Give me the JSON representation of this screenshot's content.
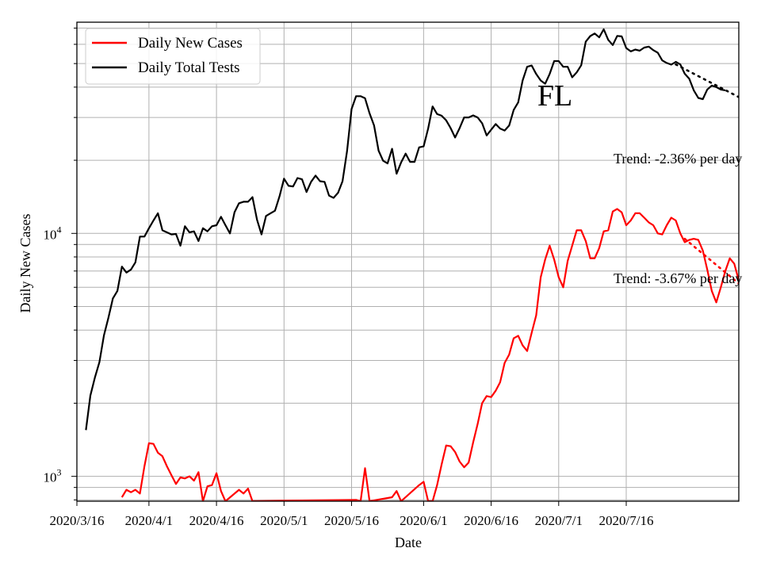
{
  "chart_data": {
    "type": "line",
    "title": "",
    "state_label": "FL",
    "xlabel": "Date",
    "ylabel": "Daily New Cases",
    "yscale": "log",
    "ylim": [
      790,
      74000
    ],
    "xlim": [
      "2020-03-16",
      "2020-08-10"
    ],
    "grid": "on (major and minor)",
    "legend_position": "top-left",
    "x_ticks": [
      "2020/3/16",
      "2020/4/1",
      "2020/4/16",
      "2020/5/1",
      "2020/5/16",
      "2020/6/1",
      "2020/6/16",
      "2020/7/1",
      "2020/7/16"
    ],
    "y_tick_labels": [
      {
        "base": "10",
        "exp": "3",
        "value": 1000
      },
      {
        "base": "10",
        "exp": "4",
        "value": 10000
      }
    ],
    "annotations": [
      {
        "text": "Trend: -2.36% per day",
        "applies_to": "Daily Total Tests"
      },
      {
        "text": "Trend: -3.67% per day",
        "applies_to": "Daily New Cases"
      }
    ],
    "series": [
      {
        "name": "Daily New Cases",
        "color": "#ff0000",
        "points": [
          [
            "2020-03-26",
            820
          ],
          [
            "2020-03-27",
            880
          ],
          [
            "2020-03-28",
            860
          ],
          [
            "2020-03-29",
            880
          ],
          [
            "2020-03-30",
            850
          ],
          [
            "2020-03-31",
            1100
          ],
          [
            "2020-04-01",
            1370
          ],
          [
            "2020-04-02",
            1360
          ],
          [
            "2020-04-03",
            1250
          ],
          [
            "2020-04-04",
            1210
          ],
          [
            "2020-04-05",
            1100
          ],
          [
            "2020-04-06",
            1010
          ],
          [
            "2020-04-07",
            930
          ],
          [
            "2020-04-08",
            990
          ],
          [
            "2020-04-09",
            980
          ],
          [
            "2020-04-10",
            1000
          ],
          [
            "2020-04-11",
            960
          ],
          [
            "2020-04-12",
            1040
          ],
          [
            "2020-04-13",
            790
          ],
          [
            "2020-04-14",
            910
          ],
          [
            "2020-04-15",
            920
          ],
          [
            "2020-04-16",
            1030
          ],
          [
            "2020-04-17",
            870
          ],
          [
            "2020-04-18",
            790
          ],
          [
            "2020-04-21",
            880
          ],
          [
            "2020-04-22",
            850
          ],
          [
            "2020-04-23",
            890
          ],
          [
            "2020-04-24",
            790
          ],
          [
            "2020-05-03",
            795
          ],
          [
            "2020-05-17",
            800
          ],
          [
            "2020-05-18",
            790
          ],
          [
            "2020-05-19",
            1080
          ],
          [
            "2020-05-20",
            790
          ],
          [
            "2020-05-25",
            820
          ],
          [
            "2020-05-26",
            870
          ],
          [
            "2020-05-27",
            790
          ],
          [
            "2020-05-31",
            920
          ],
          [
            "2020-06-01",
            950
          ],
          [
            "2020-06-02",
            790
          ],
          [
            "2020-06-03",
            790
          ],
          [
            "2020-06-04",
            920
          ],
          [
            "2020-06-05",
            1120
          ],
          [
            "2020-06-06",
            1340
          ],
          [
            "2020-06-07",
            1330
          ],
          [
            "2020-06-08",
            1260
          ],
          [
            "2020-06-09",
            1150
          ],
          [
            "2020-06-10",
            1090
          ],
          [
            "2020-06-11",
            1140
          ],
          [
            "2020-06-12",
            1380
          ],
          [
            "2020-06-13",
            1640
          ],
          [
            "2020-06-14",
            2000
          ],
          [
            "2020-06-15",
            2140
          ],
          [
            "2020-06-16",
            2120
          ],
          [
            "2020-06-17",
            2250
          ],
          [
            "2020-06-18",
            2440
          ],
          [
            "2020-06-19",
            2930
          ],
          [
            "2020-06-20",
            3170
          ],
          [
            "2020-06-21",
            3700
          ],
          [
            "2020-06-22",
            3790
          ],
          [
            "2020-06-23",
            3460
          ],
          [
            "2020-06-24",
            3280
          ],
          [
            "2020-06-25",
            3900
          ],
          [
            "2020-06-26",
            4600
          ],
          [
            "2020-06-27",
            6600
          ],
          [
            "2020-06-28",
            7800
          ],
          [
            "2020-06-29",
            8900
          ],
          [
            "2020-06-30",
            7800
          ],
          [
            "2020-07-01",
            6600
          ],
          [
            "2020-07-02",
            6000
          ],
          [
            "2020-07-03",
            7700
          ],
          [
            "2020-07-04",
            8900
          ],
          [
            "2020-07-05",
            10300
          ],
          [
            "2020-07-06",
            10300
          ],
          [
            "2020-07-07",
            9300
          ],
          [
            "2020-07-08",
            7900
          ],
          [
            "2020-07-09",
            7900
          ],
          [
            "2020-07-10",
            8700
          ],
          [
            "2020-07-11",
            10200
          ],
          [
            "2020-07-12",
            10300
          ],
          [
            "2020-07-13",
            12300
          ],
          [
            "2020-07-14",
            12600
          ],
          [
            "2020-07-15",
            12200
          ],
          [
            "2020-07-16",
            10800
          ],
          [
            "2020-07-17",
            11300
          ],
          [
            "2020-07-18",
            12100
          ],
          [
            "2020-07-19",
            12100
          ],
          [
            "2020-07-20",
            11600
          ],
          [
            "2020-07-21",
            11100
          ],
          [
            "2020-07-22",
            10800
          ],
          [
            "2020-07-23",
            10000
          ],
          [
            "2020-07-24",
            9900
          ],
          [
            "2020-07-25",
            10800
          ],
          [
            "2020-07-26",
            11600
          ],
          [
            "2020-07-27",
            11300
          ],
          [
            "2020-07-28",
            10000
          ],
          [
            "2020-07-29",
            9200
          ],
          [
            "2020-07-30",
            9400
          ],
          [
            "2020-07-31",
            9500
          ],
          [
            "2020-08-01",
            9400
          ],
          [
            "2020-08-02",
            8500
          ],
          [
            "2020-08-03",
            7100
          ],
          [
            "2020-08-04",
            5800
          ],
          [
            "2020-08-05",
            5200
          ],
          [
            "2020-08-06",
            6000
          ],
          [
            "2020-08-07",
            7000
          ],
          [
            "2020-08-08",
            7900
          ],
          [
            "2020-08-09",
            7500
          ],
          [
            "2020-08-10",
            6400
          ],
          [
            "2020-08-11",
            5200
          ]
        ],
        "trend": {
          "label": "Trend: -3.67% per day",
          "points": [
            [
              "2020-07-29",
              9500
            ],
            [
              "2020-08-11",
              6000
            ]
          ]
        }
      },
      {
        "name": "Daily Total Tests",
        "color": "#000000",
        "points": [
          [
            "2020-03-18",
            1550
          ],
          [
            "2020-03-19",
            2150
          ],
          [
            "2020-03-20",
            2550
          ],
          [
            "2020-03-21",
            2950
          ],
          [
            "2020-03-22",
            3800
          ],
          [
            "2020-03-23",
            4500
          ],
          [
            "2020-03-24",
            5400
          ],
          [
            "2020-03-25",
            5800
          ],
          [
            "2020-03-26",
            7300
          ],
          [
            "2020-03-27",
            6900
          ],
          [
            "2020-03-28",
            7100
          ],
          [
            "2020-03-29",
            7600
          ],
          [
            "2020-03-30",
            9700
          ],
          [
            "2020-03-31",
            9700
          ],
          [
            "2020-04-01",
            10500
          ],
          [
            "2020-04-02",
            11300
          ],
          [
            "2020-04-03",
            12100
          ],
          [
            "2020-04-04",
            10300
          ],
          [
            "2020-04-05",
            10100
          ],
          [
            "2020-04-06",
            9900
          ],
          [
            "2020-04-07",
            9950
          ],
          [
            "2020-04-08",
            8900
          ],
          [
            "2020-04-09",
            10700
          ],
          [
            "2020-04-10",
            10100
          ],
          [
            "2020-04-11",
            10200
          ],
          [
            "2020-04-12",
            9300
          ],
          [
            "2020-04-13",
            10500
          ],
          [
            "2020-04-14",
            10200
          ],
          [
            "2020-04-15",
            10700
          ],
          [
            "2020-04-16",
            10800
          ],
          [
            "2020-04-17",
            11700
          ],
          [
            "2020-04-18",
            10800
          ],
          [
            "2020-04-19",
            10000
          ],
          [
            "2020-04-20",
            12200
          ],
          [
            "2020-04-21",
            13300
          ],
          [
            "2020-04-22",
            13500
          ],
          [
            "2020-04-23",
            13500
          ],
          [
            "2020-04-24",
            14100
          ],
          [
            "2020-04-25",
            11400
          ],
          [
            "2020-04-26",
            9900
          ],
          [
            "2020-04-27",
            11800
          ],
          [
            "2020-04-28",
            12100
          ],
          [
            "2020-04-29",
            12400
          ],
          [
            "2020-04-30",
            14200
          ],
          [
            "2020-05-01",
            16800
          ],
          [
            "2020-05-02",
            15700
          ],
          [
            "2020-05-03",
            15600
          ],
          [
            "2020-05-04",
            16900
          ],
          [
            "2020-05-05",
            16700
          ],
          [
            "2020-05-06",
            14800
          ],
          [
            "2020-05-07",
            16300
          ],
          [
            "2020-05-08",
            17300
          ],
          [
            "2020-05-09",
            16400
          ],
          [
            "2020-05-10",
            16300
          ],
          [
            "2020-05-11",
            14300
          ],
          [
            "2020-05-12",
            14000
          ],
          [
            "2020-05-13",
            14700
          ],
          [
            "2020-05-14",
            16400
          ],
          [
            "2020-05-15",
            21800
          ],
          [
            "2020-05-16",
            32500
          ],
          [
            "2020-05-17",
            36700
          ],
          [
            "2020-05-18",
            36700
          ],
          [
            "2020-05-19",
            36000
          ],
          [
            "2020-05-20",
            31200
          ],
          [
            "2020-05-21",
            27800
          ],
          [
            "2020-05-22",
            21900
          ],
          [
            "2020-05-23",
            19900
          ],
          [
            "2020-05-24",
            19400
          ],
          [
            "2020-05-25",
            22300
          ],
          [
            "2020-05-26",
            17600
          ],
          [
            "2020-05-27",
            19600
          ],
          [
            "2020-05-28",
            21300
          ],
          [
            "2020-05-29",
            19700
          ],
          [
            "2020-05-30",
            19700
          ],
          [
            "2020-05-31",
            22600
          ],
          [
            "2020-06-01",
            22800
          ],
          [
            "2020-06-02",
            27000
          ],
          [
            "2020-06-03",
            33300
          ],
          [
            "2020-06-04",
            31000
          ],
          [
            "2020-06-05",
            30500
          ],
          [
            "2020-06-06",
            29200
          ],
          [
            "2020-06-07",
            27100
          ],
          [
            "2020-06-08",
            24800
          ],
          [
            "2020-06-09",
            27100
          ],
          [
            "2020-06-10",
            30000
          ],
          [
            "2020-06-11",
            30000
          ],
          [
            "2020-06-12",
            30600
          ],
          [
            "2020-06-13",
            30000
          ],
          [
            "2020-06-14",
            28400
          ],
          [
            "2020-06-15",
            25300
          ],
          [
            "2020-06-16",
            26700
          ],
          [
            "2020-06-17",
            28200
          ],
          [
            "2020-06-18",
            27000
          ],
          [
            "2020-06-19",
            26500
          ],
          [
            "2020-06-20",
            27800
          ],
          [
            "2020-06-21",
            32200
          ],
          [
            "2020-06-22",
            34600
          ],
          [
            "2020-06-23",
            42600
          ],
          [
            "2020-06-24",
            48500
          ],
          [
            "2020-06-25",
            49100
          ],
          [
            "2020-06-26",
            45300
          ],
          [
            "2020-06-27",
            42600
          ],
          [
            "2020-06-28",
            41300
          ],
          [
            "2020-06-29",
            45300
          ],
          [
            "2020-06-30",
            51200
          ],
          [
            "2020-07-01",
            51200
          ],
          [
            "2020-07-02",
            48500
          ],
          [
            "2020-07-03",
            48500
          ],
          [
            "2020-07-04",
            43900
          ],
          [
            "2020-07-05",
            46000
          ],
          [
            "2020-07-06",
            49200
          ],
          [
            "2020-07-07",
            61500
          ],
          [
            "2020-07-08",
            64900
          ],
          [
            "2020-07-09",
            66500
          ],
          [
            "2020-07-10",
            64100
          ],
          [
            "2020-07-11",
            69200
          ],
          [
            "2020-07-12",
            62600
          ],
          [
            "2020-07-13",
            59600
          ],
          [
            "2020-07-14",
            65000
          ],
          [
            "2020-07-15",
            64700
          ],
          [
            "2020-07-16",
            57900
          ],
          [
            "2020-07-17",
            56100
          ],
          [
            "2020-07-18",
            57100
          ],
          [
            "2020-07-19",
            56500
          ],
          [
            "2020-07-20",
            58200
          ],
          [
            "2020-07-21",
            58700
          ],
          [
            "2020-07-22",
            56800
          ],
          [
            "2020-07-23",
            55400
          ],
          [
            "2020-07-24",
            51500
          ],
          [
            "2020-07-25",
            50300
          ],
          [
            "2020-07-26",
            49500
          ],
          [
            "2020-07-27",
            50800
          ],
          [
            "2020-07-28",
            49600
          ],
          [
            "2020-07-29",
            45400
          ],
          [
            "2020-07-30",
            43300
          ],
          [
            "2020-07-31",
            38800
          ],
          [
            "2020-08-01",
            36100
          ],
          [
            "2020-08-02",
            35700
          ],
          [
            "2020-08-03",
            39100
          ],
          [
            "2020-08-04",
            40600
          ],
          [
            "2020-08-05",
            40000
          ],
          [
            "2020-08-06",
            39100
          ],
          [
            "2020-08-07",
            38800
          ]
        ],
        "trend": {
          "label": "Trend: -2.36% per day",
          "points": [
            [
              "2020-07-27",
              49600
            ],
            [
              "2020-08-11",
              35600
            ]
          ]
        }
      }
    ]
  }
}
